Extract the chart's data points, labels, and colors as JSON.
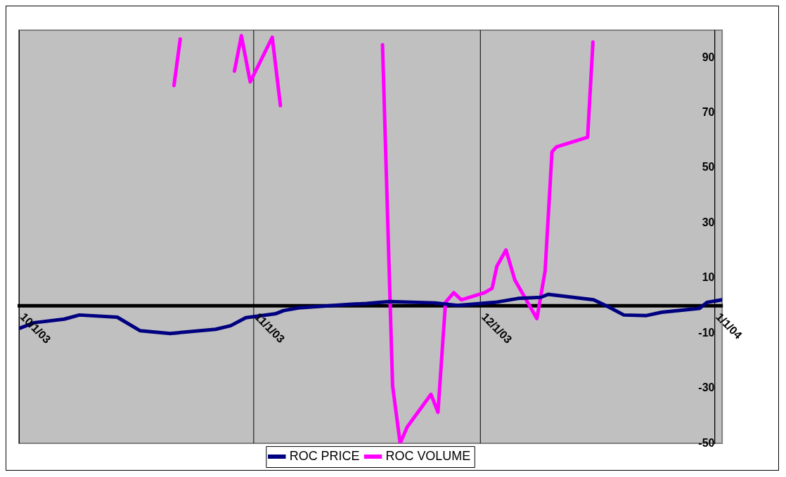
{
  "chart_data": {
    "type": "line",
    "xlim": [
      "2003-10-01",
      "2004-01-02"
    ],
    "xticks": [
      {
        "value": "2003-10-01",
        "label": "10/1/03"
      },
      {
        "value": "2003-11-01",
        "label": "11/1/03"
      },
      {
        "value": "2003-12-01",
        "label": "12/1/03"
      },
      {
        "value": "2004-01-01",
        "label": "1/1/04"
      }
    ],
    "ylim": [
      -50,
      100
    ],
    "yticks": [
      -50,
      -30,
      -10,
      10,
      30,
      50,
      70,
      90
    ],
    "grid": "x",
    "legend": "bottom",
    "line_style": "solid",
    "marker": "none",
    "series": [
      {
        "name": "ROC PRICE",
        "color": "#000080",
        "x": [
          "2003-10-01",
          "2003-10-03",
          "2003-10-07",
          "2003-10-09",
          "2003-10-14",
          "2003-10-17",
          "2003-10-21",
          "2003-10-27",
          "2003-10-29",
          "2003-10-31",
          "2003-11-04",
          "2003-11-05",
          "2003-11-07",
          "2003-11-14",
          "2003-11-16",
          "2003-11-19",
          "2003-11-25",
          "2003-11-28",
          "2003-12-03",
          "2003-12-06",
          "2003-12-09",
          "2003-12-10",
          "2003-12-16",
          "2003-12-18",
          "2003-12-20",
          "2003-12-23",
          "2003-12-25",
          "2003-12-30",
          "2003-12-31",
          "2004-01-02"
        ],
        "values": [
          -8.3,
          -6.2,
          -4.9,
          -3.4,
          -4.2,
          -9.1,
          -10.1,
          -8.6,
          -7.3,
          -4.4,
          -2.9,
          -1.8,
          -0.8,
          0.5,
          0.8,
          1.5,
          1.0,
          0.1,
          1.2,
          2.6,
          3.0,
          4.1,
          2.1,
          -0.5,
          -3.4,
          -3.6,
          -2.4,
          -1.0,
          1.2,
          2.1
        ]
      },
      {
        "name": "ROC VOLUME",
        "color": "#ff00ff",
        "x": [
          "2003-10-21T12:00",
          "2003-10-22T08:00",
          "2003-10-23",
          "2003-10-29T12:00",
          "2003-10-30T10:00",
          "2003-10-31T14:00",
          "2003-11-03T12:00",
          "2003-11-04T14:00",
          "2003-11-05",
          "2003-11-17",
          "2003-11-18T02:00",
          "2003-11-19T10:00",
          "2003-11-20T10:00",
          "2003-11-21T08:00",
          "2003-11-24T12:00",
          "2003-11-25T10:00",
          "2003-11-26T10:00",
          "2003-11-27T12:00",
          "2003-11-28T12:00",
          "2003-12-01T14:00",
          "2003-12-02T14:00",
          "2003-12-03T05:00",
          "2003-12-04T10:00",
          "2003-12-05T14:00",
          "2003-12-08T12:00",
          "2003-12-09T14:00",
          "2003-12-10T12:00",
          "2003-12-11T02:00",
          "2003-12-15T05:00",
          "2003-12-15T22:00"
        ],
        "values": [
          79.9,
          96.8,
          null,
          85.1,
          98.0,
          81.2,
          97.4,
          72.6,
          null,
          null,
          94.7,
          -29.1,
          -50,
          -44.1,
          -32.2,
          -38.7,
          1.2,
          4.7,
          2.1,
          4.7,
          6.3,
          14.3,
          20.2,
          9.3,
          -4.7,
          12.5,
          55.8,
          57.6,
          61.1,
          95.7
        ]
      }
    ]
  }
}
